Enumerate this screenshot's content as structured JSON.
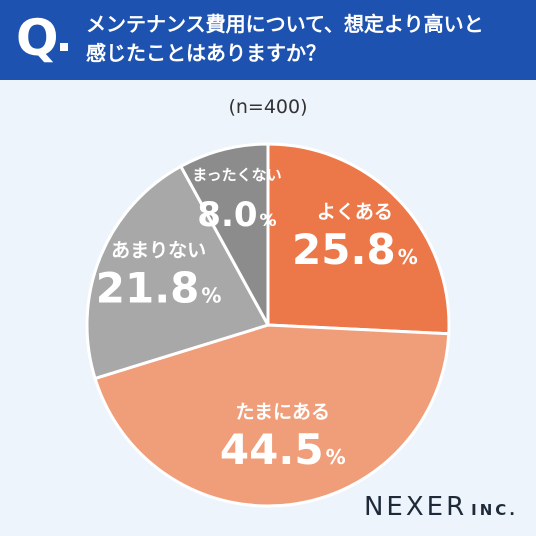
{
  "header": {
    "q_mark": "Q",
    "question": "メンテナンス費用について、想定より高いと\n感じたことはありますか？"
  },
  "sample": "(n=400)",
  "colors": {
    "header_bg": "#1d52b0",
    "background": "#eef4fb"
  },
  "logo": {
    "main": "NEXER",
    "sub": "INC."
  },
  "chart_data": {
    "type": "pie",
    "title": "",
    "unit": "%",
    "slices": [
      {
        "label": "よくある",
        "value": 25.8,
        "value_text": "25.8",
        "color": "#ec7748"
      },
      {
        "label": "たまにある",
        "value": 44.5,
        "value_text": "44.5",
        "color": "#f09d79"
      },
      {
        "label": "あまりない",
        "value": 21.8,
        "value_text": "21.8",
        "color": "#a8a8a8"
      },
      {
        "label": "まったくない",
        "value": 8.0,
        "value_text": "8.0",
        "color": "#8c8c8c"
      }
    ]
  }
}
